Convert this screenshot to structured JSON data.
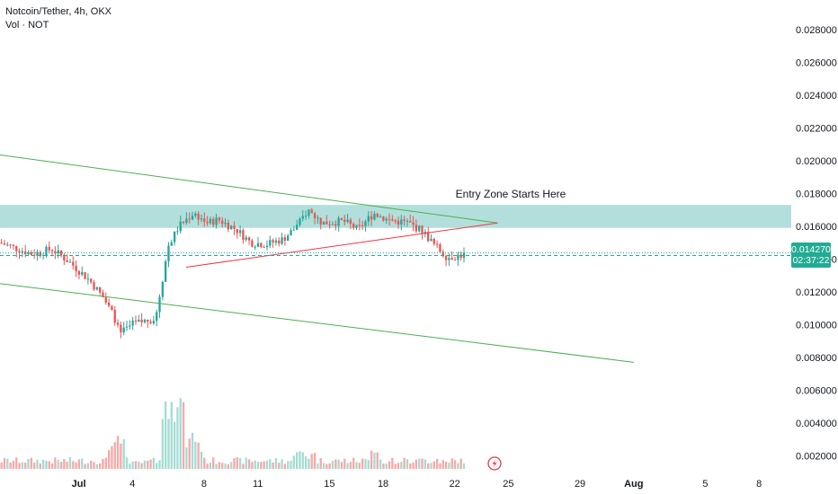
{
  "header": {
    "symbol_line": "Notcoin/Tether, 4h, OKX",
    "volume_line": "Vol · NOT"
  },
  "colors": {
    "up": "#26a69a",
    "down": "#ef5350",
    "zone": "#b2dfdb",
    "trend_green": "#4caf50",
    "trend_red": "#f23645",
    "price_line": "#22ab94"
  },
  "chart_data": {
    "type": "candlestick",
    "symbol": "Notcoin/Tether",
    "timeframe": "4h",
    "exchange": "OKX",
    "y_axis": {
      "ticks": [
        "0.028000",
        "0.026000",
        "0.024000",
        "0.022000",
        "0.020000",
        "0.018000",
        "0.016000",
        "0.014000",
        "0.012000",
        "0.010000",
        "0.008000",
        "0.006000",
        "0.004000",
        "0.002000"
      ],
      "range": [
        0.0012,
        0.0298
      ]
    },
    "x_axis": {
      "ticks": [
        {
          "label": "Jul",
          "bold": true
        },
        {
          "label": "4",
          "bold": false
        },
        {
          "label": "8",
          "bold": false
        },
        {
          "label": "11",
          "bold": false
        },
        {
          "label": "15",
          "bold": false
        },
        {
          "label": "18",
          "bold": false
        },
        {
          "label": "22",
          "bold": false
        },
        {
          "label": "25",
          "bold": false
        },
        {
          "label": "29",
          "bold": false
        },
        {
          "label": "Aug",
          "bold": true
        },
        {
          "label": "5",
          "bold": false
        },
        {
          "label": "8",
          "bold": false
        }
      ],
      "start_date": "2024-06-28",
      "visible_range_days": [
        -1.4,
        42.8
      ]
    },
    "last_price": "0.014270",
    "countdown": "02:37:22",
    "annotations": [
      {
        "type": "zone",
        "y_low": 0.0159,
        "y_high": 0.0173,
        "label": "Entry Zone Starts Here"
      }
    ],
    "trendlines": [
      {
        "color": "green",
        "from": {
          "day": -1.4,
          "price": 0.02035
        },
        "to": {
          "day": 26.4,
          "price": 0.0162
        }
      },
      {
        "color": "green",
        "from": {
          "day": -1.4,
          "price": 0.0125
        },
        "to": {
          "day": 34.0,
          "price": 0.0077
        }
      },
      {
        "color": "red",
        "from": {
          "day": 9.0,
          "price": 0.0135
        },
        "to": {
          "day": 26.4,
          "price": 0.0162
        }
      }
    ],
    "key_prices": [
      {
        "day": 4.4,
        "price": 0.0116,
        "note": "pre-breakout"
      },
      {
        "day": 5.3,
        "price": 0.0094,
        "note": "low"
      },
      {
        "day": 9.4,
        "price": 0.0176,
        "note": "spike high"
      },
      {
        "day": 19.5,
        "price": 0.0179,
        "note": "top wick"
      },
      {
        "day": 23.6,
        "price": 0.0139,
        "note": "recent low"
      }
    ],
    "volume_label": "Vol · NOT"
  }
}
